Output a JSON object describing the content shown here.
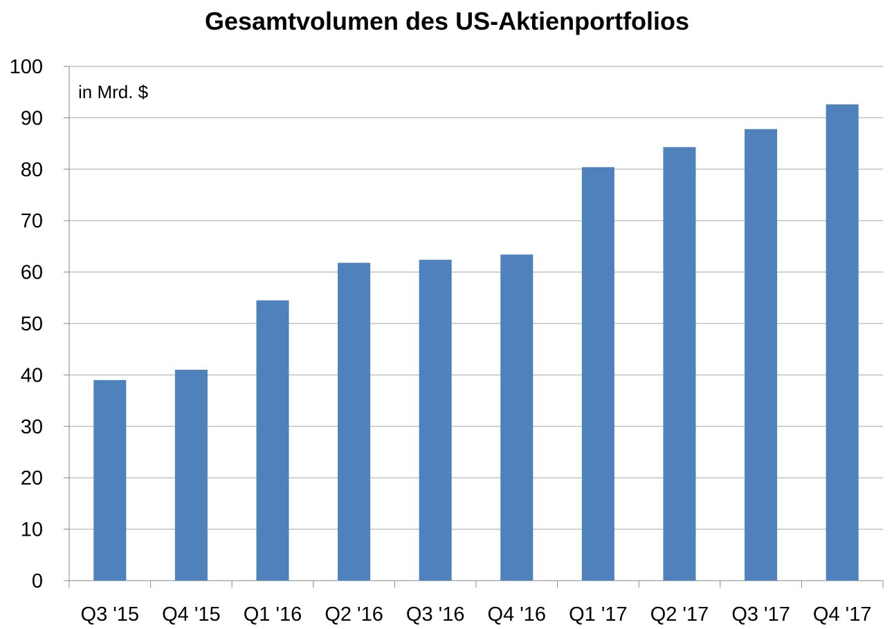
{
  "chart_data": {
    "type": "bar",
    "title": "Gesamtvolumen des US-Aktienportfolios",
    "unit_label": "in Mrd. $",
    "categories": [
      "Q3 '15",
      "Q4 '15",
      "Q1 '16",
      "Q2 '16",
      "Q3 '16",
      "Q4 '16",
      "Q1 '17",
      "Q2 '17",
      "Q3 '17",
      "Q4 '17"
    ],
    "values": [
      39,
      41,
      54.5,
      61.8,
      62.4,
      63.4,
      80.4,
      84.3,
      87.8,
      92.6
    ],
    "ylim": [
      0,
      100
    ],
    "yticks": [
      "0",
      "10",
      "20",
      "30",
      "40",
      "50",
      "60",
      "70",
      "80",
      "90",
      "100"
    ],
    "xlabel": "",
    "ylabel": "",
    "grid": true,
    "legend": "none",
    "bar_color": "#4f81bd"
  }
}
